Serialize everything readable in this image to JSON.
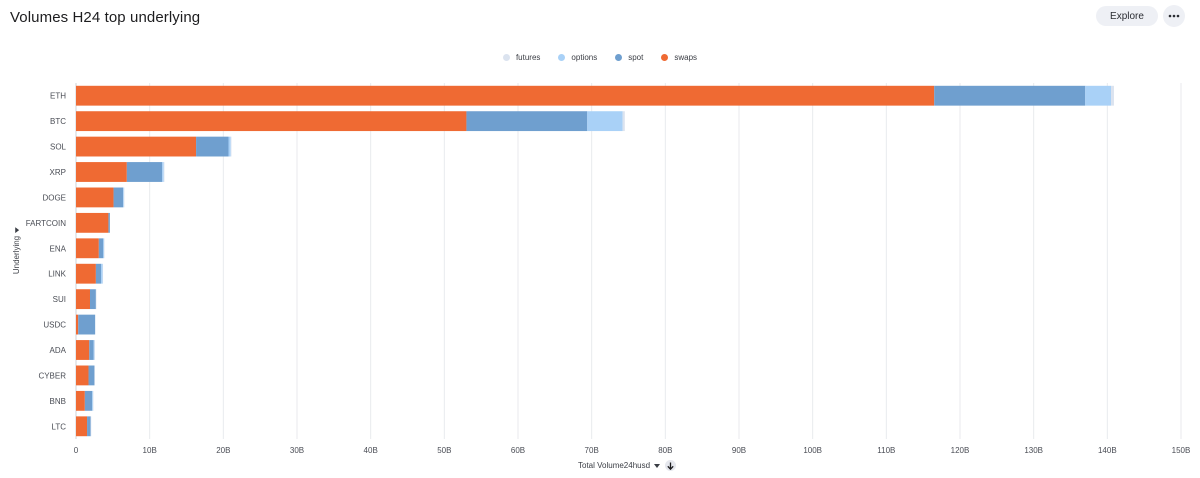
{
  "header": {
    "title": "Volumes H24 top underlying",
    "explore_label": "Explore",
    "more_icon": "more-horizontal-icon"
  },
  "colors": {
    "futures": "#dbe3ef",
    "options": "#a9d1f7",
    "spot": "#6f9fcf",
    "swaps": "#ef6a33",
    "grid": "#e8eaee"
  },
  "chart_data": {
    "type": "bar",
    "orientation": "horizontal",
    "stacked": true,
    "title": "Volumes H24 top underlying",
    "xlabel": "Total Volume24husd",
    "ylabel": "Underlying",
    "xlim": [
      0,
      150000000000
    ],
    "x_ticks": [
      "0",
      "10B",
      "20B",
      "30B",
      "40B",
      "50B",
      "60B",
      "70B",
      "80B",
      "90B",
      "100B",
      "110B",
      "120B",
      "130B",
      "140B",
      "150B"
    ],
    "grid": true,
    "legend_position": "top-center",
    "categories": [
      "ETH",
      "BTC",
      "SOL",
      "XRP",
      "DOGE",
      "FARTCOIN",
      "ENA",
      "LINK",
      "SUI",
      "USDC",
      "ADA",
      "CYBER",
      "BNB",
      "LTC"
    ],
    "series": [
      {
        "name": "swaps",
        "values": [
          116500000000,
          53000000000,
          16300000000,
          6900000000,
          5100000000,
          4400000000,
          3100000000,
          2700000000,
          1900000000,
          300000000,
          1800000000,
          1700000000,
          1200000000,
          1500000000
        ]
      },
      {
        "name": "spot",
        "values": [
          20500000000,
          16400000000,
          4400000000,
          4800000000,
          1300000000,
          200000000,
          600000000,
          700000000,
          800000000,
          2300000000,
          600000000,
          800000000,
          1000000000,
          500000000
        ]
      },
      {
        "name": "options",
        "values": [
          3500000000,
          4800000000,
          300000000,
          200000000,
          100000000,
          0,
          100000000,
          200000000,
          0,
          0,
          100000000,
          0,
          100000000,
          0
        ]
      },
      {
        "name": "futures",
        "values": [
          400000000,
          300000000,
          100000000,
          100000000,
          50000000,
          0,
          50000000,
          50000000,
          50000000,
          0,
          50000000,
          50000000,
          50000000,
          50000000
        ]
      }
    ],
    "legend": [
      "futures",
      "options",
      "spot",
      "swaps"
    ]
  }
}
